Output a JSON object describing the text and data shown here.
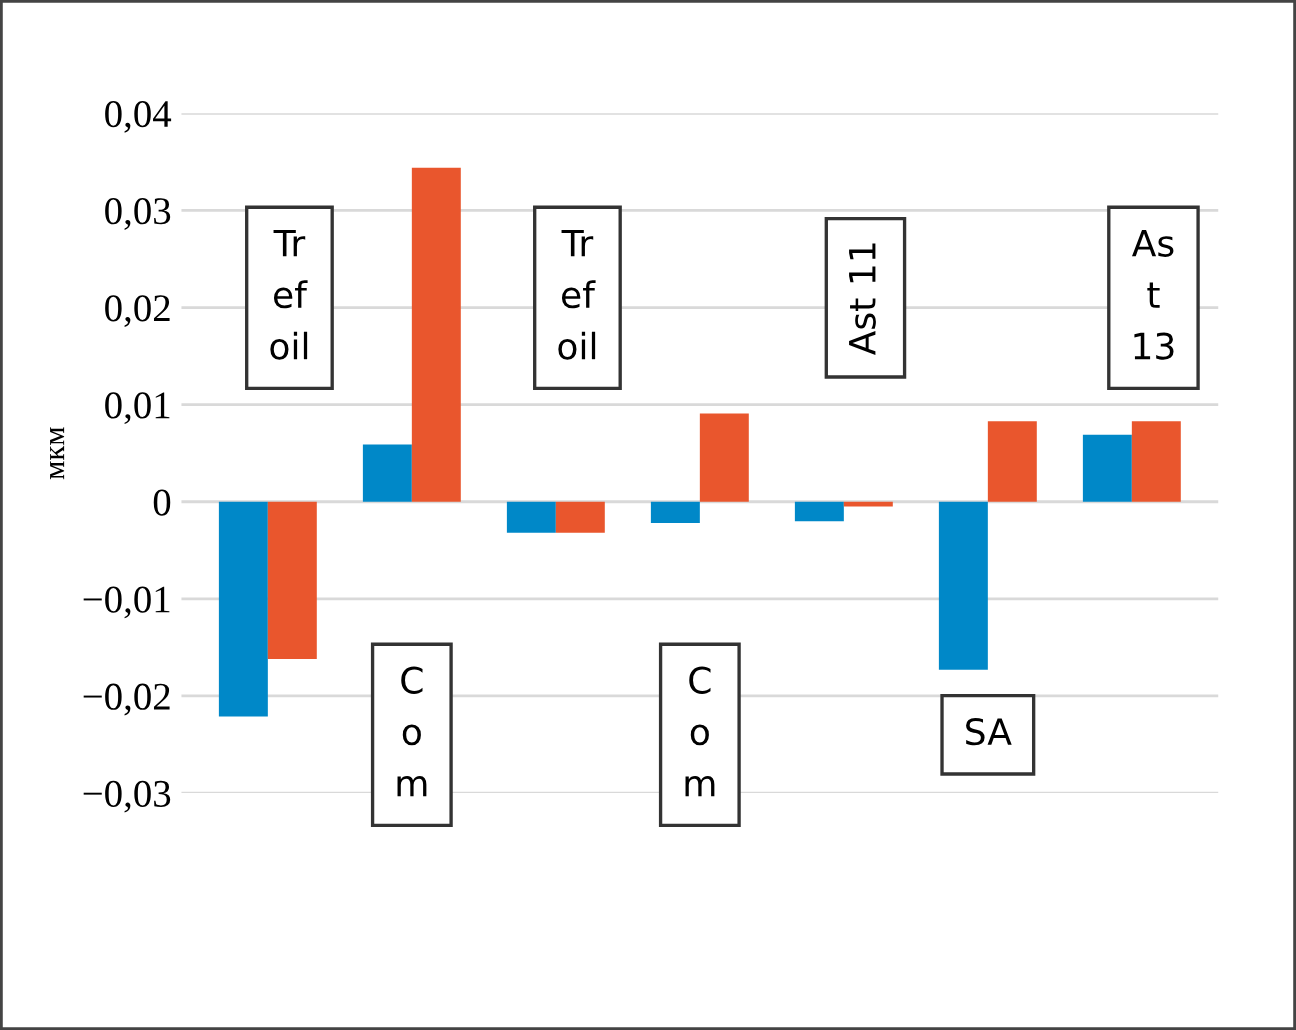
{
  "chart_data": {
    "type": "bar",
    "ylabel": "мкм",
    "categories": [
      null,
      null,
      null,
      null,
      null,
      null,
      null
    ],
    "series": [
      {
        "color": "#0088c8",
        "values": [
          -0.0221,
          0.0059,
          -0.0032,
          -0.0022,
          -0.002,
          -0.0173,
          0.0069
        ]
      },
      {
        "color": "#e9562d",
        "values": [
          -0.0162,
          0.0344,
          -0.0032,
          0.0091,
          -0.0005,
          0.0083,
          0.0083
        ]
      }
    ],
    "ylim": [
      -0.03,
      0.04
    ],
    "yticks": [
      {
        "value": -0.03,
        "label": "−0,03"
      },
      {
        "value": -0.02,
        "label": "−0,02"
      },
      {
        "value": -0.01,
        "label": "−0,01"
      },
      {
        "value": 0,
        "label": "0"
      },
      {
        "value": 0.01,
        "label": "0,01"
      },
      {
        "value": 0.02,
        "label": "0,02"
      },
      {
        "value": 0.03,
        "label": "0,03"
      },
      {
        "value": 0.04,
        "label": "0,04"
      }
    ],
    "grid": "y",
    "annotations": [
      "Tr\nef\noil",
      "C\no\nm",
      "Tr\nef\noil",
      "C\no\nm",
      "Ast 11",
      "SA",
      "As\nt\n13"
    ]
  }
}
